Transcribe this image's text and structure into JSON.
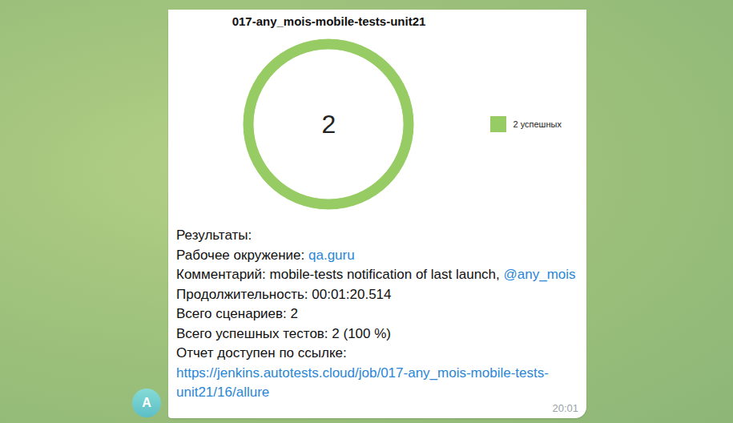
{
  "chart_data": {
    "type": "pie",
    "title": "017-any_mois-mobile-tests-unit21",
    "categories": [
      "2 успешных"
    ],
    "values": [
      2
    ],
    "colors": [
      "#97cc64"
    ],
    "total": 2,
    "legend": "right"
  },
  "message": {
    "lines": [
      {
        "text": "Результаты:"
      },
      {
        "label": "Рабочее окружение:",
        "link": "qa.guru"
      },
      {
        "label": "Комментарий:",
        "text": "mobile-tests notification of last launch,",
        "link": "@any_mois"
      },
      {
        "label": "Продолжительность:",
        "text": "00:01:20.514"
      },
      {
        "label": "Всего сценариев:",
        "text": "2"
      },
      {
        "label": "Всего успешных тестов:",
        "text": "2 (100 %)"
      },
      {
        "label": "Отчет доступен по ссылке:",
        "link": "https://jenkins.autotests.cloud/job/017-any_mois-mobile-tests-unit21/16/allure"
      }
    ],
    "time": "20:01"
  },
  "avatar": {
    "initial": "A"
  }
}
